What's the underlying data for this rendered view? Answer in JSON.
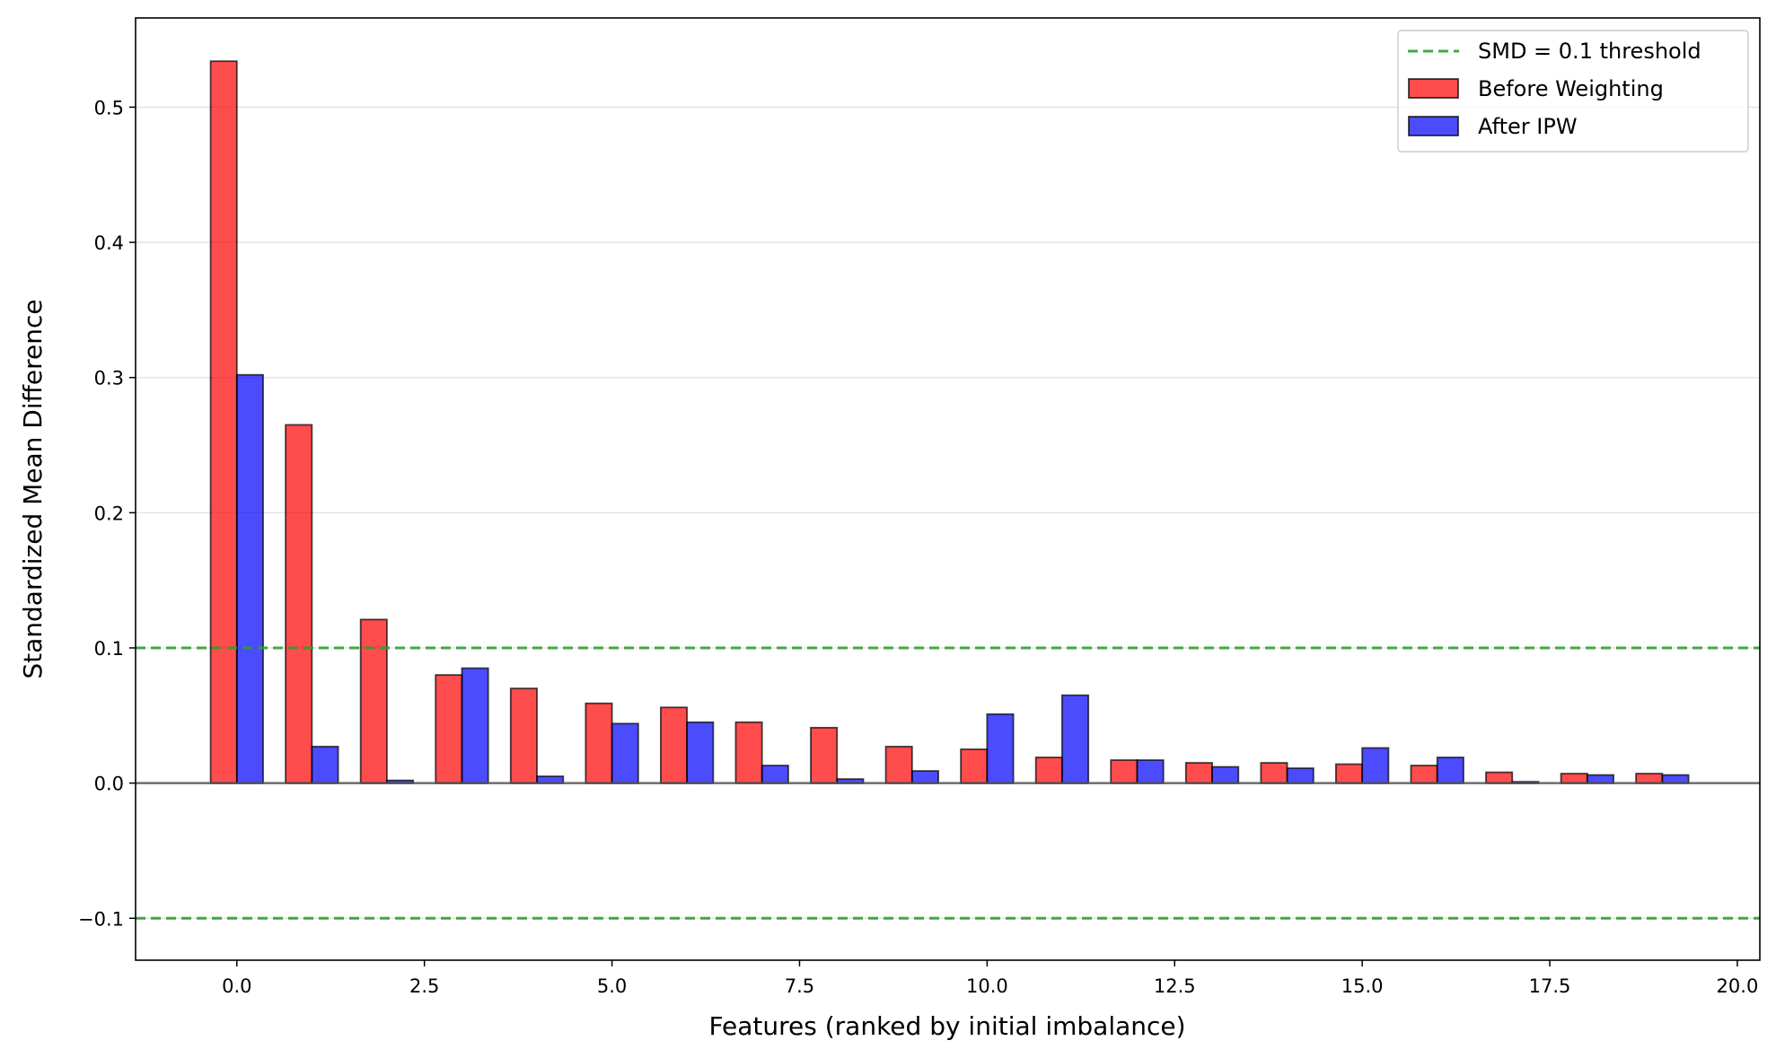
{
  "chart_data": {
    "type": "bar",
    "title": "",
    "xlabel": "Features (ranked by initial imbalance)",
    "ylabel": "Standardized Mean Difference",
    "x": [
      0,
      1,
      2,
      3,
      4,
      5,
      6,
      7,
      8,
      9,
      10,
      11,
      12,
      13,
      14,
      15,
      16,
      17,
      18,
      19
    ],
    "series": [
      {
        "name": "Before Weighting",
        "color": "#ff0000",
        "values": [
          0.534,
          0.265,
          0.121,
          0.08,
          0.07,
          0.059,
          0.056,
          0.045,
          0.041,
          0.027,
          0.025,
          0.019,
          0.017,
          0.015,
          0.015,
          0.014,
          0.013,
          0.008,
          0.007,
          0.007
        ]
      },
      {
        "name": "After IPW",
        "color": "#0000ff",
        "values": [
          0.302,
          0.027,
          0.002,
          0.085,
          0.005,
          0.044,
          0.045,
          0.013,
          0.003,
          0.009,
          0.051,
          0.065,
          0.017,
          0.012,
          0.011,
          0.026,
          0.019,
          0.001,
          0.006,
          0.006
        ]
      }
    ],
    "reference_lines": [
      {
        "name": "SMD = 0.1 threshold",
        "y": 0.1,
        "color": "#2ca02c",
        "style": "dashed"
      },
      {
        "y": -0.1,
        "color": "#2ca02c",
        "style": "dashed"
      },
      {
        "y": 0.0,
        "color": "#555555",
        "style": "solid"
      }
    ],
    "xlim": [
      -1.35,
      20.3
    ],
    "ylim": [
      -0.131,
      0.566
    ],
    "xticks": [
      0.0,
      2.5,
      5.0,
      7.5,
      10.0,
      12.5,
      15.0,
      17.5,
      20.0
    ],
    "xtick_labels": [
      "0.0",
      "2.5",
      "5.0",
      "7.5",
      "10.0",
      "12.5",
      "15.0",
      "17.5",
      "20.0"
    ],
    "yticks": [
      -0.1,
      0.0,
      0.1,
      0.2,
      0.3,
      0.4,
      0.5
    ],
    "ytick_labels": [
      "−0.1",
      "0.0",
      "0.1",
      "0.2",
      "0.3",
      "0.4",
      "0.5"
    ],
    "grid": "horizontal",
    "legend_position": "top-right",
    "legend": [
      "SMD = 0.1 threshold",
      "Before Weighting",
      "After IPW"
    ]
  }
}
